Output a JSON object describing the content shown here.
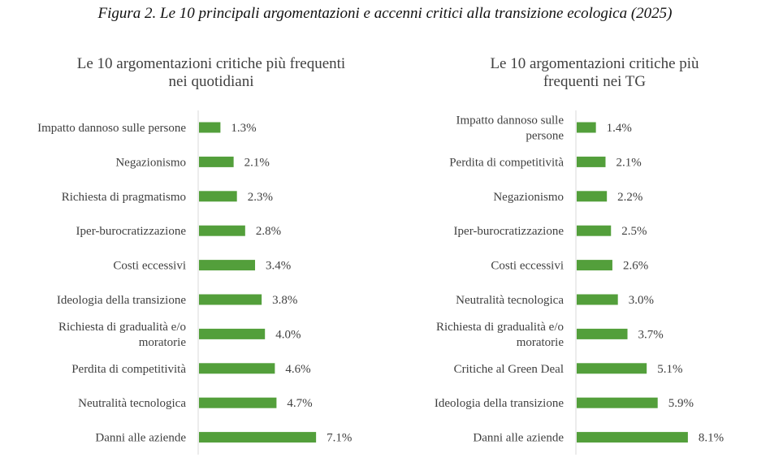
{
  "figure_title": "Figura 2. Le 10 principali argomentazioni e accenni critici alla transizione ecologica (2025)",
  "bar_color": "#539f3b",
  "text_color": "#404040",
  "chart_data": [
    {
      "type": "bar",
      "orientation": "horizontal",
      "title": [
        "Le 10 argomentazioni critiche più frequenti",
        "nei quotidiani"
      ],
      "categories": [
        [
          "Impatto dannoso sulle persone"
        ],
        [
          "Negazionismo"
        ],
        [
          "Richiesta di pragmatismo"
        ],
        [
          "Iper-burocratizzazione"
        ],
        [
          "Costi eccessivi"
        ],
        [
          "Ideologia della transizione"
        ],
        [
          "Richiesta di gradualità e/o",
          "moratorie"
        ],
        [
          "Perdita di competitività"
        ],
        [
          "Neutralità tecnologica"
        ],
        [
          "Danni alle aziende"
        ]
      ],
      "values": [
        1.3,
        2.1,
        2.3,
        2.8,
        3.4,
        3.8,
        4.0,
        4.6,
        4.7,
        7.1
      ],
      "labels": [
        "1.3%",
        "2.1%",
        "2.3%",
        "2.8%",
        "3.4%",
        "3.8%",
        "4.0%",
        "4.6%",
        "4.7%",
        "7.1%"
      ],
      "unit": "%",
      "grid": false
    },
    {
      "type": "bar",
      "orientation": "horizontal",
      "title": [
        "Le 10 argomentazioni critiche più",
        "frequenti nei TG"
      ],
      "categories": [
        [
          "Impatto dannoso sulle",
          "persone"
        ],
        [
          "Perdita di competitività"
        ],
        [
          "Negazionismo"
        ],
        [
          "Iper-burocratizzazione"
        ],
        [
          "Costi eccessivi"
        ],
        [
          "Neutralità tecnologica"
        ],
        [
          "Richiesta di gradualità e/o",
          "moratorie"
        ],
        [
          "Critiche al Green Deal"
        ],
        [
          "Ideologia della transizione"
        ],
        [
          "Danni alle aziende"
        ]
      ],
      "values": [
        1.4,
        2.1,
        2.2,
        2.5,
        2.6,
        3.0,
        3.7,
        5.1,
        5.9,
        8.1
      ],
      "labels": [
        "1.4%",
        "2.1%",
        "2.2%",
        "2.5%",
        "2.6%",
        "3.0%",
        "3.7%",
        "5.1%",
        "5.9%",
        "8.1%"
      ],
      "unit": "%",
      "grid": false
    }
  ]
}
